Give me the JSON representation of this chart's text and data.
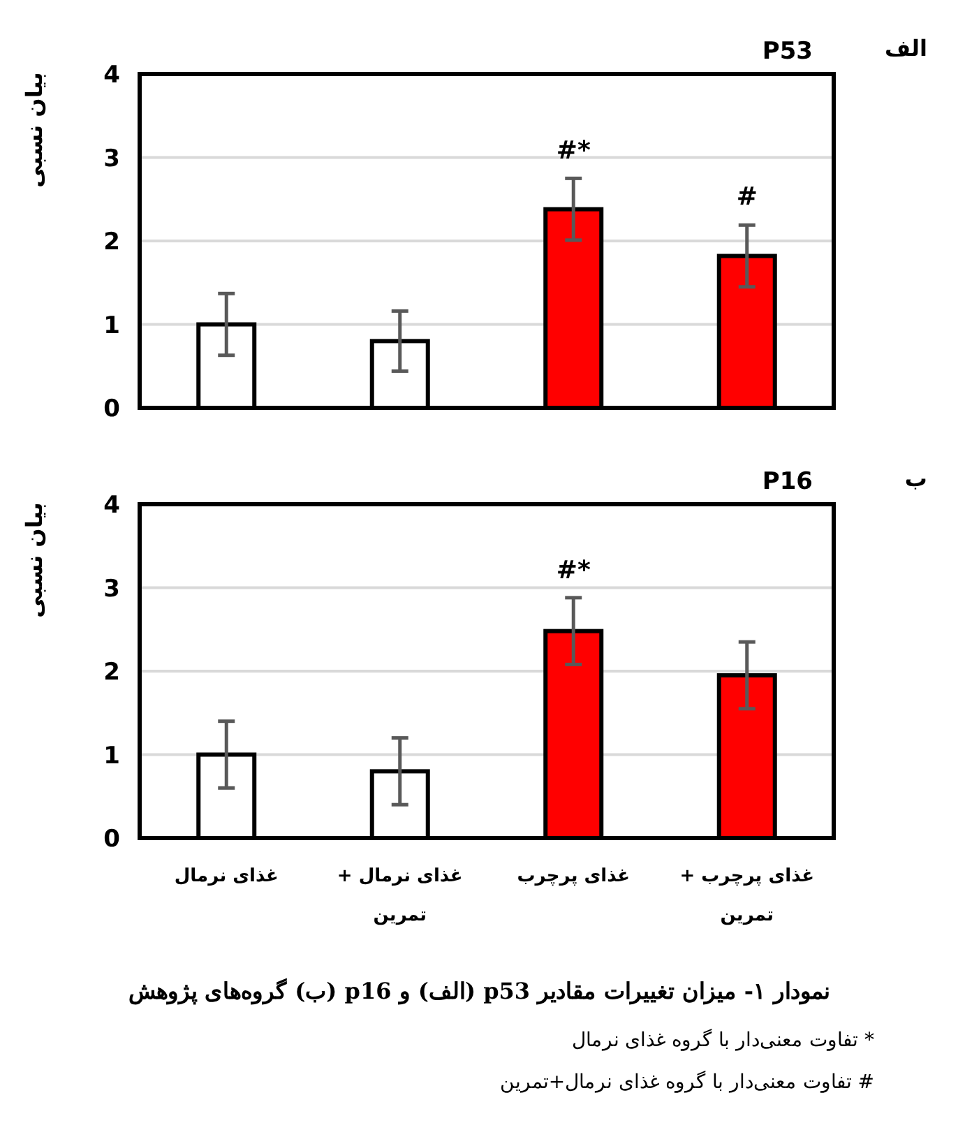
{
  "chart_data": [
    {
      "type": "bar",
      "title": "P53",
      "ylabel": "بیان نسبی",
      "categories": [
        "غذای نرمال",
        "غذای نرمال + تمرین",
        "غذای پرچرب",
        "غذای پرچرب + تمرین"
      ],
      "values": [
        1.0,
        0.8,
        2.38,
        1.82
      ],
      "errors": [
        0.37,
        0.36,
        0.37,
        0.37
      ],
      "colors": [
        "#ffffff",
        "#ffffff",
        "#ff0000",
        "#ff0000"
      ],
      "ylim": [
        0,
        4
      ],
      "yticks": [
        0,
        1,
        2,
        3,
        4
      ],
      "grid": "y",
      "tick_labels": "y",
      "annotations": [
        "الف",
        {
          "text": "#*",
          "x": "غذای پرچرب",
          "y": 2.75
        },
        {
          "text": "#",
          "x": "غذای پرچرب + تمرین",
          "y": 2.2
        }
      ]
    },
    {
      "type": "bar",
      "title": "P16",
      "ylabel": "بیان نسبی",
      "categories": [
        "غذای نرمال",
        "غذای نرمال + تمرین",
        "غذای پرچرب",
        "غذای پرچرب + تمرین"
      ],
      "values": [
        1.0,
        0.8,
        2.48,
        1.95
      ],
      "errors": [
        0.4,
        0.4,
        0.4,
        0.4
      ],
      "colors": [
        "#ffffff",
        "#ffffff",
        "#ff0000",
        "#ff0000"
      ],
      "ylim": [
        0,
        4
      ],
      "yticks": [
        0,
        1,
        2,
        3,
        4
      ],
      "grid": "y",
      "annotations": [
        "ب",
        {
          "text": "#*",
          "x": "غذای پرچرب",
          "y": 2.88
        },
        "نمودار ۱- میزان تغییرات مقادیر p53 (الف) و p16 (ب) گروه‌های پژوهش",
        "* تفاوت معنی‌دار با گروه غذای نرمال",
        "# تفاوت معنی‌دار با گروه غذای نرمال+تمرین"
      ]
    }
  ]
}
